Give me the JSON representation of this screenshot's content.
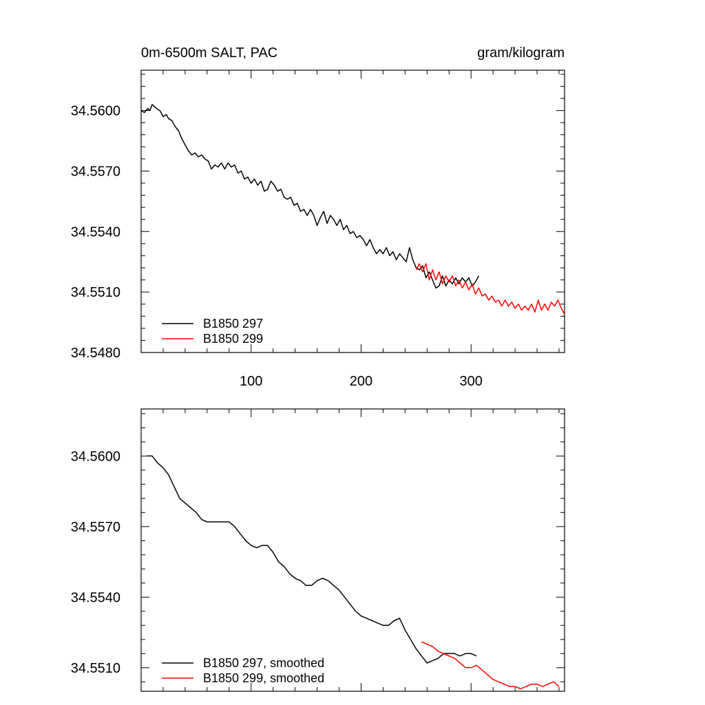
{
  "figure": {
    "title_left": "0m-6500m SALT, PAC",
    "title_right": "gram/kilogram"
  },
  "chart_data": [
    {
      "type": "line",
      "title": "0m-6500m SALT, PAC",
      "units": "gram/kilogram",
      "xlabel": "",
      "ylabel": "",
      "xlim": [
        0,
        385
      ],
      "ylim": [
        34.548,
        34.562
      ],
      "xticks": [
        100,
        200,
        300
      ],
      "xtick_labels": [
        "100",
        "200",
        "300"
      ],
      "yticks": [
        34.548,
        34.551,
        34.554,
        34.557,
        34.56
      ],
      "ytick_labels": [
        "34.5480",
        "34.5510",
        "34.5540",
        "34.5570",
        "34.5600"
      ],
      "grid": false,
      "legend_position": "bottom-left",
      "series": [
        {
          "name": "B1850 297",
          "color": "#000000",
          "x": [
            0,
            3,
            6,
            8,
            10,
            12,
            14,
            17,
            20,
            23,
            25,
            28,
            31,
            34,
            37,
            40,
            43,
            46,
            49,
            52,
            55,
            58,
            61,
            64,
            67,
            70,
            73,
            76,
            79,
            82,
            85,
            88,
            91,
            94,
            97,
            100,
            103,
            106,
            109,
            112,
            115,
            118,
            121,
            124,
            127,
            130,
            133,
            136,
            139,
            142,
            145,
            148,
            151,
            154,
            157,
            160,
            163,
            166,
            169,
            172,
            175,
            178,
            181,
            184,
            187,
            190,
            193,
            196,
            199,
            202,
            205,
            208,
            211,
            214,
            217,
            220,
            223,
            226,
            229,
            232,
            235,
            238,
            241,
            244,
            247,
            250,
            253,
            256,
            259,
            262,
            265,
            268,
            271,
            274,
            277,
            280,
            283,
            286,
            289,
            292,
            295,
            298,
            301,
            304,
            307
          ],
          "y": [
            34.56,
            34.5599,
            34.5601,
            34.56,
            34.5603,
            34.5602,
            34.5601,
            34.56,
            34.5597,
            34.5598,
            34.5596,
            34.5595,
            34.5592,
            34.559,
            34.5586,
            34.5583,
            34.558,
            34.5578,
            34.5579,
            34.5577,
            34.5578,
            34.5576,
            34.5575,
            34.5571,
            34.5573,
            34.5572,
            34.5574,
            34.5571,
            34.5574,
            34.5572,
            34.5573,
            34.5569,
            34.557,
            34.5566,
            34.5567,
            34.5564,
            34.5566,
            34.5563,
            34.5565,
            34.556,
            34.5561,
            34.5565,
            34.5563,
            34.556,
            34.5561,
            34.5557,
            34.5556,
            34.5557,
            34.5553,
            34.5554,
            34.555,
            34.5551,
            34.5548,
            34.5551,
            34.5548,
            34.5543,
            34.5547,
            34.555,
            34.5544,
            34.5548,
            34.5546,
            34.5543,
            34.5546,
            34.5541,
            34.5543,
            34.5539,
            34.554,
            34.5537,
            34.5538,
            34.5536,
            34.5533,
            34.5536,
            34.5532,
            34.5529,
            34.5531,
            34.5529,
            34.5532,
            34.5528,
            34.553,
            34.5526,
            34.5529,
            34.5527,
            34.5525,
            34.5532,
            34.5526,
            34.5522,
            34.5521,
            34.5523,
            34.5517,
            34.552,
            34.5516,
            34.5512,
            34.5513,
            34.5518,
            34.5513,
            34.5516,
            34.5514,
            34.5517,
            34.5514,
            34.5517,
            34.5515,
            34.5517,
            34.5513,
            34.5515,
            34.5518
          ]
        },
        {
          "name": "B1850 299",
          "color": "#ff0000",
          "x": [
            250,
            253,
            256,
            259,
            262,
            265,
            268,
            271,
            274,
            277,
            280,
            283,
            286,
            289,
            292,
            295,
            298,
            301,
            304,
            307,
            310,
            313,
            316,
            319,
            322,
            325,
            328,
            331,
            334,
            337,
            340,
            343,
            346,
            349,
            352,
            355,
            358,
            361,
            364,
            367,
            370,
            373,
            376,
            379,
            382,
            385
          ],
          "y": [
            34.5521,
            34.5524,
            34.552,
            34.5524,
            34.5516,
            34.5521,
            34.5516,
            34.552,
            34.5514,
            34.5518,
            34.5515,
            34.5518,
            34.5513,
            34.5516,
            34.5512,
            34.5515,
            34.5511,
            34.5514,
            34.5509,
            34.5512,
            34.5508,
            34.5509,
            34.5506,
            34.5508,
            34.5505,
            34.5506,
            34.5503,
            34.5506,
            34.5503,
            34.5505,
            34.5502,
            34.5504,
            34.5501,
            34.5503,
            34.5501,
            34.5504,
            34.55,
            34.5506,
            34.5501,
            34.5504,
            34.5501,
            34.5505,
            34.5503,
            34.5506,
            34.5502,
            34.5499
          ]
        }
      ]
    },
    {
      "type": "line",
      "title": "",
      "xlabel": "",
      "ylabel": "",
      "xlim": [
        0,
        385
      ],
      "ylim": [
        34.55,
        34.562
      ],
      "xticks": [
        100,
        200,
        300
      ],
      "xtick_labels": [
        "",
        "",
        ""
      ],
      "yticks": [
        34.551,
        34.554,
        34.557,
        34.56
      ],
      "ytick_labels": [
        "34.5510",
        "34.5540",
        "34.5570",
        "34.5600"
      ],
      "grid": false,
      "legend_position": "bottom-left",
      "series": [
        {
          "name": "B1850 297, smoothed",
          "color": "#000000",
          "x": [
            5,
            10,
            15,
            20,
            25,
            30,
            35,
            40,
            45,
            50,
            55,
            60,
            65,
            70,
            75,
            80,
            85,
            90,
            95,
            100,
            105,
            110,
            115,
            120,
            125,
            130,
            135,
            140,
            145,
            150,
            155,
            160,
            165,
            170,
            175,
            180,
            185,
            190,
            195,
            200,
            205,
            210,
            215,
            220,
            225,
            230,
            235,
            240,
            245,
            250,
            255,
            260,
            265,
            270,
            275,
            280,
            285,
            290,
            295,
            300,
            305
          ],
          "y": [
            34.56,
            34.56,
            34.5597,
            34.5595,
            34.5592,
            34.5587,
            34.5582,
            34.558,
            34.5578,
            34.5576,
            34.5573,
            34.5572,
            34.5572,
            34.5572,
            34.5572,
            34.5572,
            34.557,
            34.5567,
            34.5564,
            34.5562,
            34.5561,
            34.5562,
            34.5562,
            34.5559,
            34.5555,
            34.5553,
            34.555,
            34.5548,
            34.5547,
            34.5545,
            34.5545,
            34.5547,
            34.5548,
            34.5547,
            34.5545,
            34.5543,
            34.554,
            34.5537,
            34.5534,
            34.5532,
            34.5531,
            34.553,
            34.5529,
            34.5528,
            34.5528,
            34.553,
            34.5531,
            34.5526,
            34.5522,
            34.5518,
            34.5515,
            34.5512,
            34.5513,
            34.5514,
            34.5516,
            34.5516,
            34.5516,
            34.5515,
            34.5516,
            34.5516,
            34.5515
          ]
        },
        {
          "name": "B1850 299, smoothed",
          "color": "#ff0000",
          "x": [
            255,
            260,
            265,
            270,
            275,
            280,
            285,
            290,
            295,
            300,
            305,
            310,
            315,
            320,
            325,
            330,
            335,
            340,
            345,
            350,
            355,
            360,
            365,
            370,
            375,
            380
          ],
          "y": [
            34.5521,
            34.552,
            34.5519,
            34.5517,
            34.5516,
            34.5515,
            34.5514,
            34.5512,
            34.551,
            34.551,
            34.5511,
            34.5509,
            34.5507,
            34.5505,
            34.5504,
            34.5503,
            34.5502,
            34.5502,
            34.5501,
            34.5502,
            34.5503,
            34.5503,
            34.5502,
            34.5503,
            34.5504,
            34.5502
          ]
        }
      ]
    }
  ]
}
